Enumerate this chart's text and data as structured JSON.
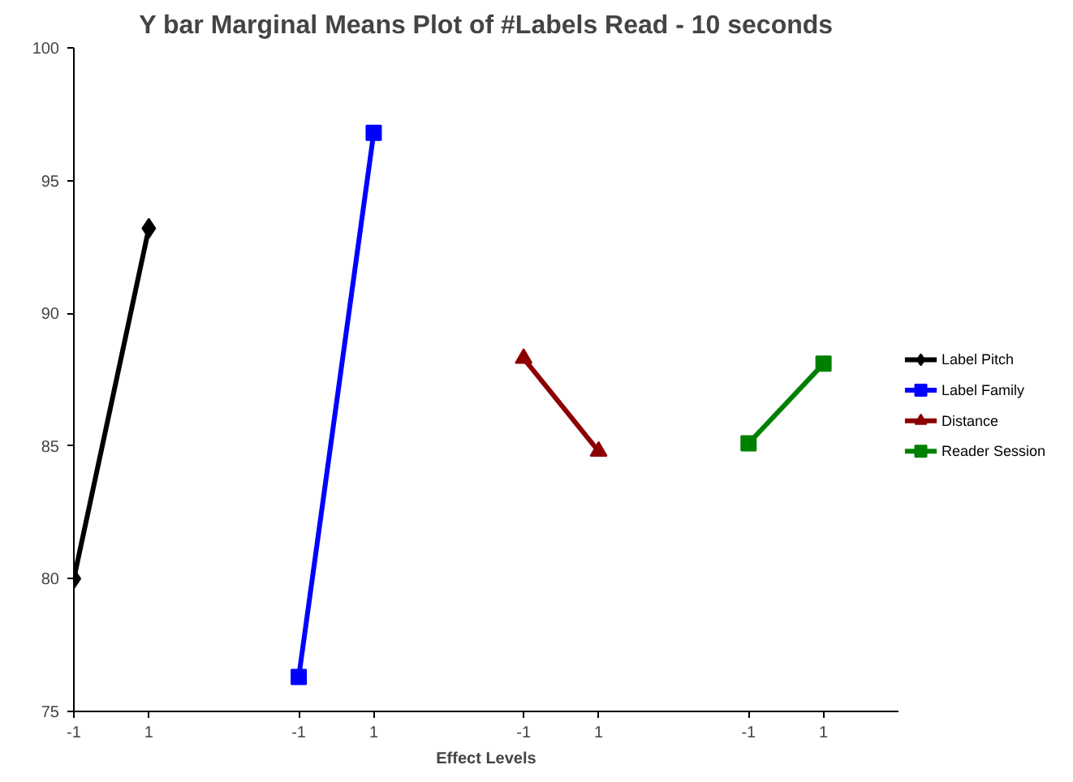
{
  "chart_data": {
    "type": "line",
    "title": "Y bar Marginal Means Plot of #Labels Read - 10 seconds",
    "xlabel": "Effect Levels",
    "categories": [
      "-1",
      "1",
      null,
      "-1",
      "1",
      null,
      "-1",
      "1",
      null,
      "-1",
      "1",
      null
    ],
    "series": [
      {
        "name": "Label Pitch",
        "color": "#000000",
        "marker": "diamond",
        "values": [
          80.0,
          93.2,
          null,
          null,
          null,
          null,
          null,
          null,
          null,
          null,
          null,
          null
        ]
      },
      {
        "name": "Label Family",
        "color": "#0000ff",
        "marker": "square",
        "values": [
          null,
          null,
          null,
          76.3,
          96.8,
          null,
          null,
          null,
          null,
          null,
          null,
          null
        ]
      },
      {
        "name": "Distance",
        "color": "#8b0000",
        "marker": "triangle",
        "values": [
          null,
          null,
          null,
          null,
          null,
          null,
          88.3,
          84.8,
          null,
          null,
          null,
          null
        ]
      },
      {
        "name": "Reader Session",
        "color": "#008000",
        "marker": "square",
        "values": [
          null,
          null,
          null,
          null,
          null,
          null,
          null,
          null,
          null,
          85.1,
          88.1,
          null
        ]
      }
    ],
    "ylim": [
      75,
      100
    ],
    "yticks": [
      75,
      80,
      85,
      90,
      95,
      100
    ],
    "grid": false,
    "legend": "right",
    "line_style": "solid"
  }
}
